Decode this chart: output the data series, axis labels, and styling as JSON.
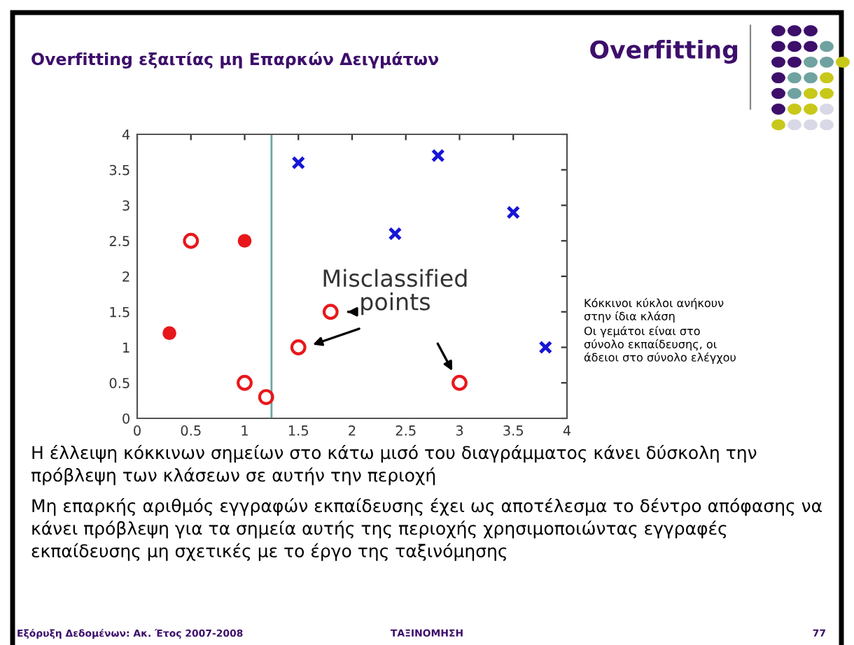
{
  "chart_data": {
    "type": "scatter",
    "title": "Overfitting",
    "subtitle": "Overfitting εξαιτίας μη Επαρκών Δειγμάτων",
    "series": [
      {
        "marker": "circle",
        "color": "#e8171b",
        "x": [
          1.0,
          0.3
        ],
        "values": [
          2.5,
          1.2
        ]
      },
      {
        "marker": "circle",
        "line_style": "solid",
        "color": "#e8171b",
        "x": [
          0.5,
          1.0,
          1.2,
          1.5,
          1.8,
          3.0
        ],
        "values": [
          2.5,
          0.5,
          0.3,
          1.0,
          1.5,
          0.5
        ]
      },
      {
        "marker": "cross",
        "color": "#1616d6",
        "x": [
          1.5,
          2.8,
          2.4,
          3.5,
          3.8
        ],
        "values": [
          3.6,
          3.7,
          2.6,
          2.9,
          1.0
        ]
      }
    ],
    "ref_lines": [
      {
        "axis": "x",
        "value": 1.25,
        "color": "#6aa6a0"
      }
    ],
    "xlim": [
      0,
      4
    ],
    "ylim": [
      0,
      4
    ],
    "xticks": [
      0,
      0.5,
      1,
      1.5,
      2,
      2.5,
      3,
      3.5,
      4
    ],
    "yticks": [
      0,
      0.5,
      1,
      1.5,
      2,
      2.5,
      3,
      3.5,
      4
    ],
    "grid": false,
    "legend": false,
    "annotations": [
      "Misclassified\npoints",
      "Κόκκινοι κύκλοι ανήκουν στην ίδια κλάση",
      "Οι γεμάτοι είναι στο σύνολο εκπαίδευσης, οι άδειοι στο σύνολο ελέγχου",
      "Η έλλειψη κόκκινων σημείων στο κάτω μισό του διαγράμματος κάνει δύσκολη την πρόβλεψη των κλάσεων σε αυτήν την περιοχή",
      "Μη επαρκής αριθμός εγγραφών εκπαίδευσης έχει ως αποτέλεσμα το δέντρο απόφασης να κάνει πρόβλεψη για τα σημεία αυτής της περιοχής χρησιμοποιώντας εγγραφές εκπαίδευσης μη σχετικές με το έργο της ταξινόμησης",
      "Εξόρυξη Δεδομένων: Ακ. Έτος 2007-2008",
      "ΤΑΞΙΝΟΜΗΣΗ",
      "77"
    ]
  }
}
